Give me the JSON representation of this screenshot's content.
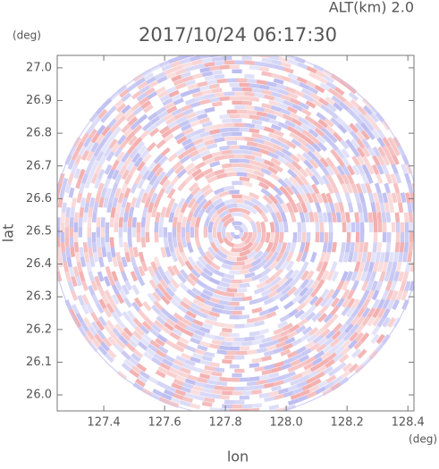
{
  "chart_data": {
    "type": "radar-ppi",
    "title": "2017/10/24 06:17:30",
    "subtitle": "ALT(km) 2.0",
    "x_label": "lon",
    "y_label": "lat",
    "x_unit": "(deg)",
    "y_unit": "(deg)",
    "xlim": [
      127.247,
      128.42
    ],
    "ylim": [
      25.951,
      27.038
    ],
    "xticks": [
      127.4,
      127.6,
      127.8,
      {
        "value": 128.0,
        "label": "128.0"
      },
      128.2,
      128.4
    ],
    "yticks": [
      {
        "value": 26.0,
        "label": "26.0"
      },
      26.1,
      26.2,
      26.3,
      26.4,
      26.5,
      26.6,
      26.7,
      26.8,
      26.9,
      {
        "value": 27.0,
        "label": "27.0"
      }
    ]
  }
}
